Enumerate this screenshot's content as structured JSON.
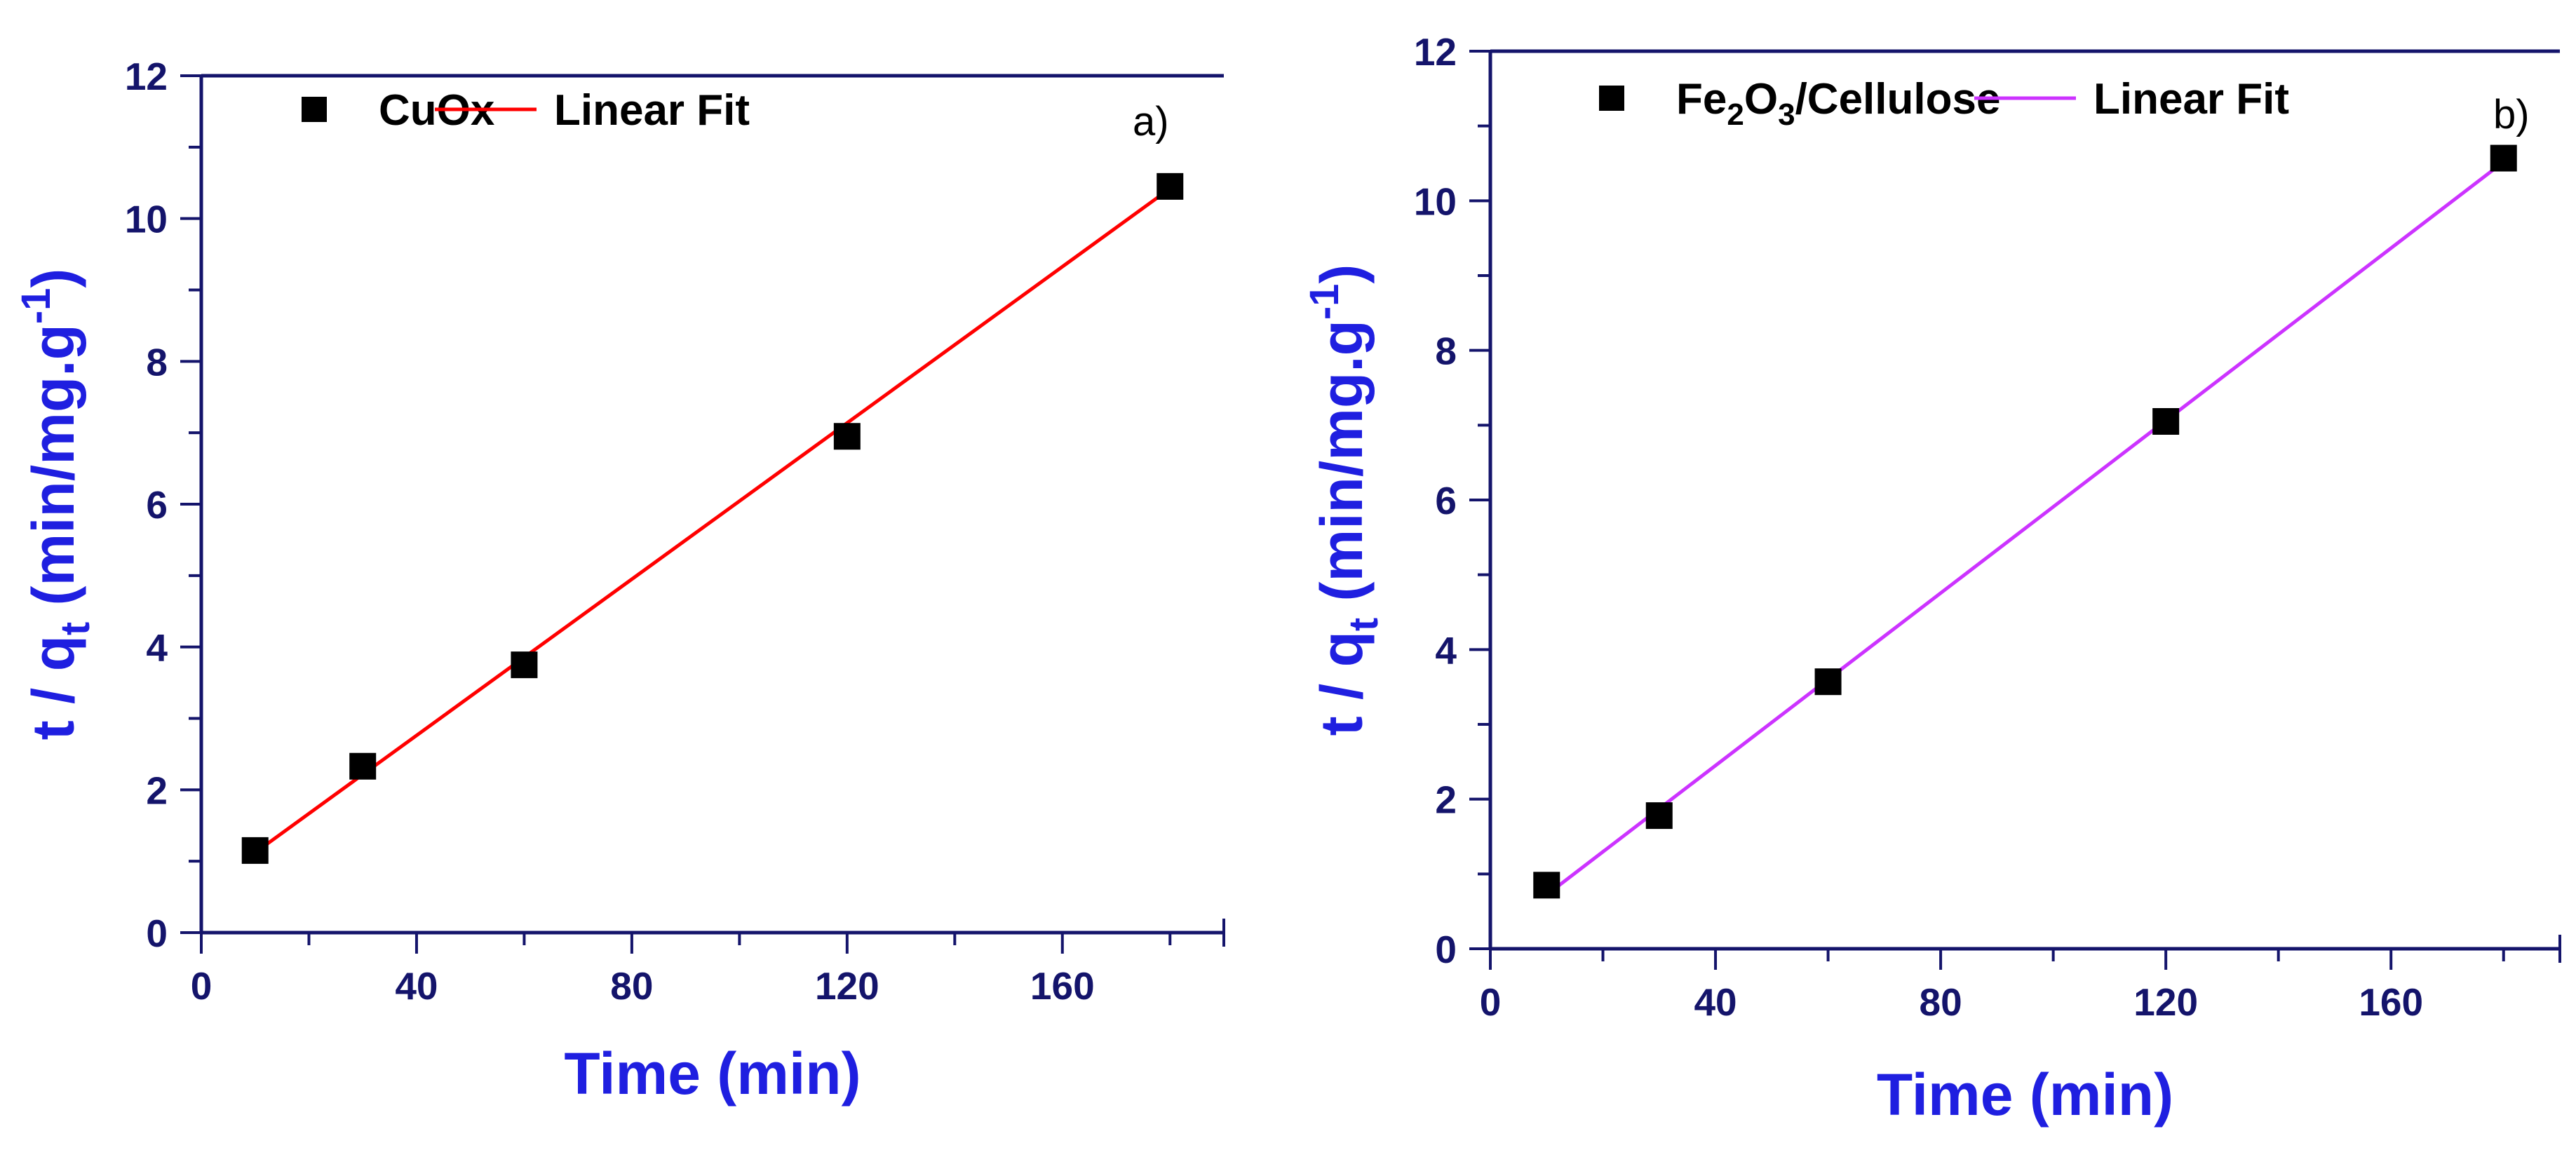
{
  "chart_data": [
    {
      "type": "scatter",
      "panel_label": "a)",
      "xlabel": "Time (min)",
      "ylabel": {
        "main": "t / q",
        "sub": "t",
        "unit": " (min/mg.g",
        "sup": "-1",
        "close": ")"
      },
      "xlim": [
        0,
        190
      ],
      "ylim": [
        0,
        12
      ],
      "xticks": [
        0,
        40,
        80,
        120,
        160
      ],
      "yticks": [
        0,
        2,
        4,
        6,
        8,
        10,
        12
      ],
      "legend_position": "top",
      "series": [
        {
          "name": "CuOx",
          "kind": "points",
          "marker": "square",
          "color": "#000000",
          "x": [
            10,
            30,
            60,
            120,
            180
          ],
          "y": [
            1.15,
            2.33,
            3.75,
            6.95,
            10.45
          ]
        },
        {
          "name": "Linear Fit",
          "kind": "line",
          "color": "#ff0000",
          "x": [
            10,
            180
          ],
          "y": [
            1.12,
            10.42
          ]
        }
      ],
      "legend_label_parts": [
        [
          "CuOx"
        ],
        [
          "Linear Fit"
        ]
      ]
    },
    {
      "type": "scatter",
      "panel_label": "b)",
      "xlabel": "Time (min)",
      "ylabel": {
        "main": "t / q",
        "sub": "t",
        "unit": " (min/mg.g",
        "sup": "-1",
        "close": ")"
      },
      "xlim": [
        0,
        190
      ],
      "ylim": [
        0,
        12
      ],
      "xticks": [
        0,
        40,
        80,
        120,
        160
      ],
      "yticks": [
        0,
        2,
        4,
        6,
        8,
        10,
        12
      ],
      "legend_position": "top",
      "series": [
        {
          "name": "Fe2O3/Cellulose",
          "kind": "points",
          "marker": "square",
          "color": "#000000",
          "x": [
            10,
            30,
            60,
            120,
            180
          ],
          "y": [
            0.85,
            1.78,
            3.57,
            7.05,
            10.57
          ]
        },
        {
          "name": "Linear Fit",
          "kind": "line",
          "color": "#cc33ff",
          "x": [
            10,
            180
          ],
          "y": [
            0.72,
            10.52
          ]
        }
      ],
      "legend_label_parts": [
        [
          "Fe",
          "2",
          "O",
          "3",
          "/Cellulose"
        ],
        [
          "Linear Fit"
        ]
      ]
    }
  ],
  "colors": {
    "axis": "#14146b",
    "axis_title": "#1f1fe0",
    "background": "#ffffff"
  }
}
